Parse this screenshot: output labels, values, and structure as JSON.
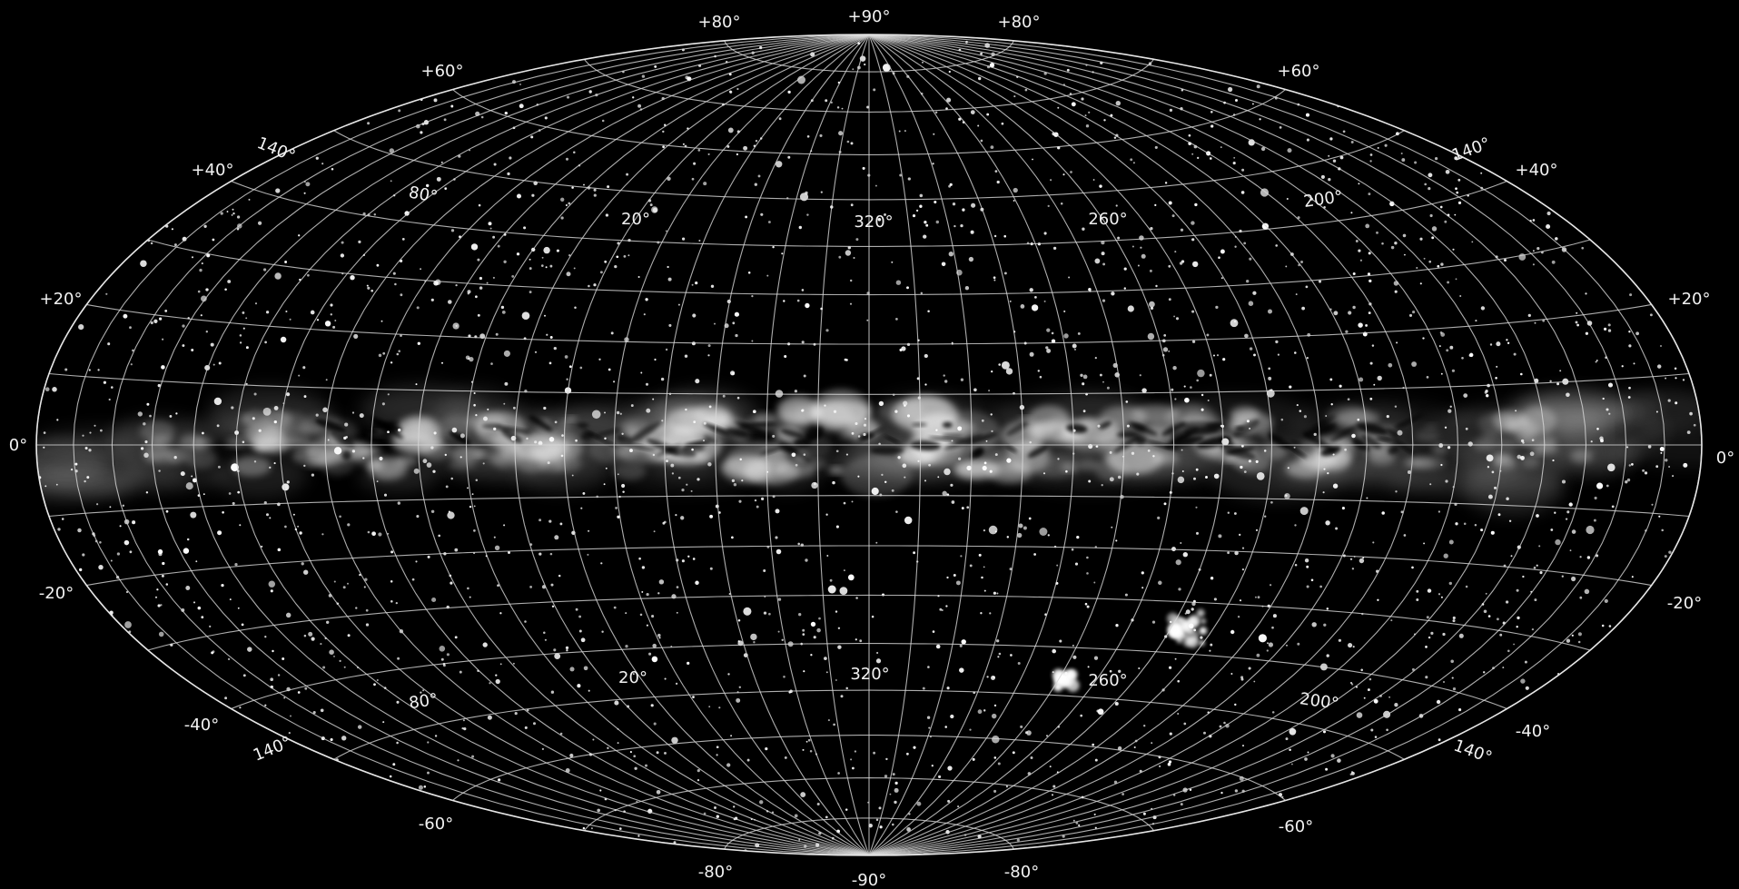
{
  "map": {
    "projection": "aitoff-hammer-ellipse",
    "colors": {
      "background": "#000000",
      "sky": "#000000",
      "grid": "#d8d8d8",
      "labels": "#f2f2f2",
      "stars": "#ffffff",
      "milky_way": "#f0f0f0"
    },
    "latitude_labels": {
      "top_left": [
        "+80°",
        "+60°",
        "+40°",
        "+20°"
      ],
      "top_center": "+90°",
      "top_right": [
        "+80°",
        "+60°",
        "+40°",
        "+20°"
      ],
      "equator_left": "0°",
      "equator_right": "0°",
      "bottom_left": [
        "-20°",
        "-40°",
        "-60°",
        "-80°"
      ],
      "bottom_center": "-90°",
      "bottom_right": [
        "-20°",
        "-40°",
        "-60°",
        "-80°"
      ]
    },
    "longitude_labels_north": [
      "140°",
      "80°",
      "20°",
      "320°",
      "260°",
      "200°",
      "140°"
    ],
    "longitude_labels_south": [
      "140°",
      "80°",
      "20°",
      "320°",
      "260°",
      "200°",
      "140°"
    ]
  }
}
